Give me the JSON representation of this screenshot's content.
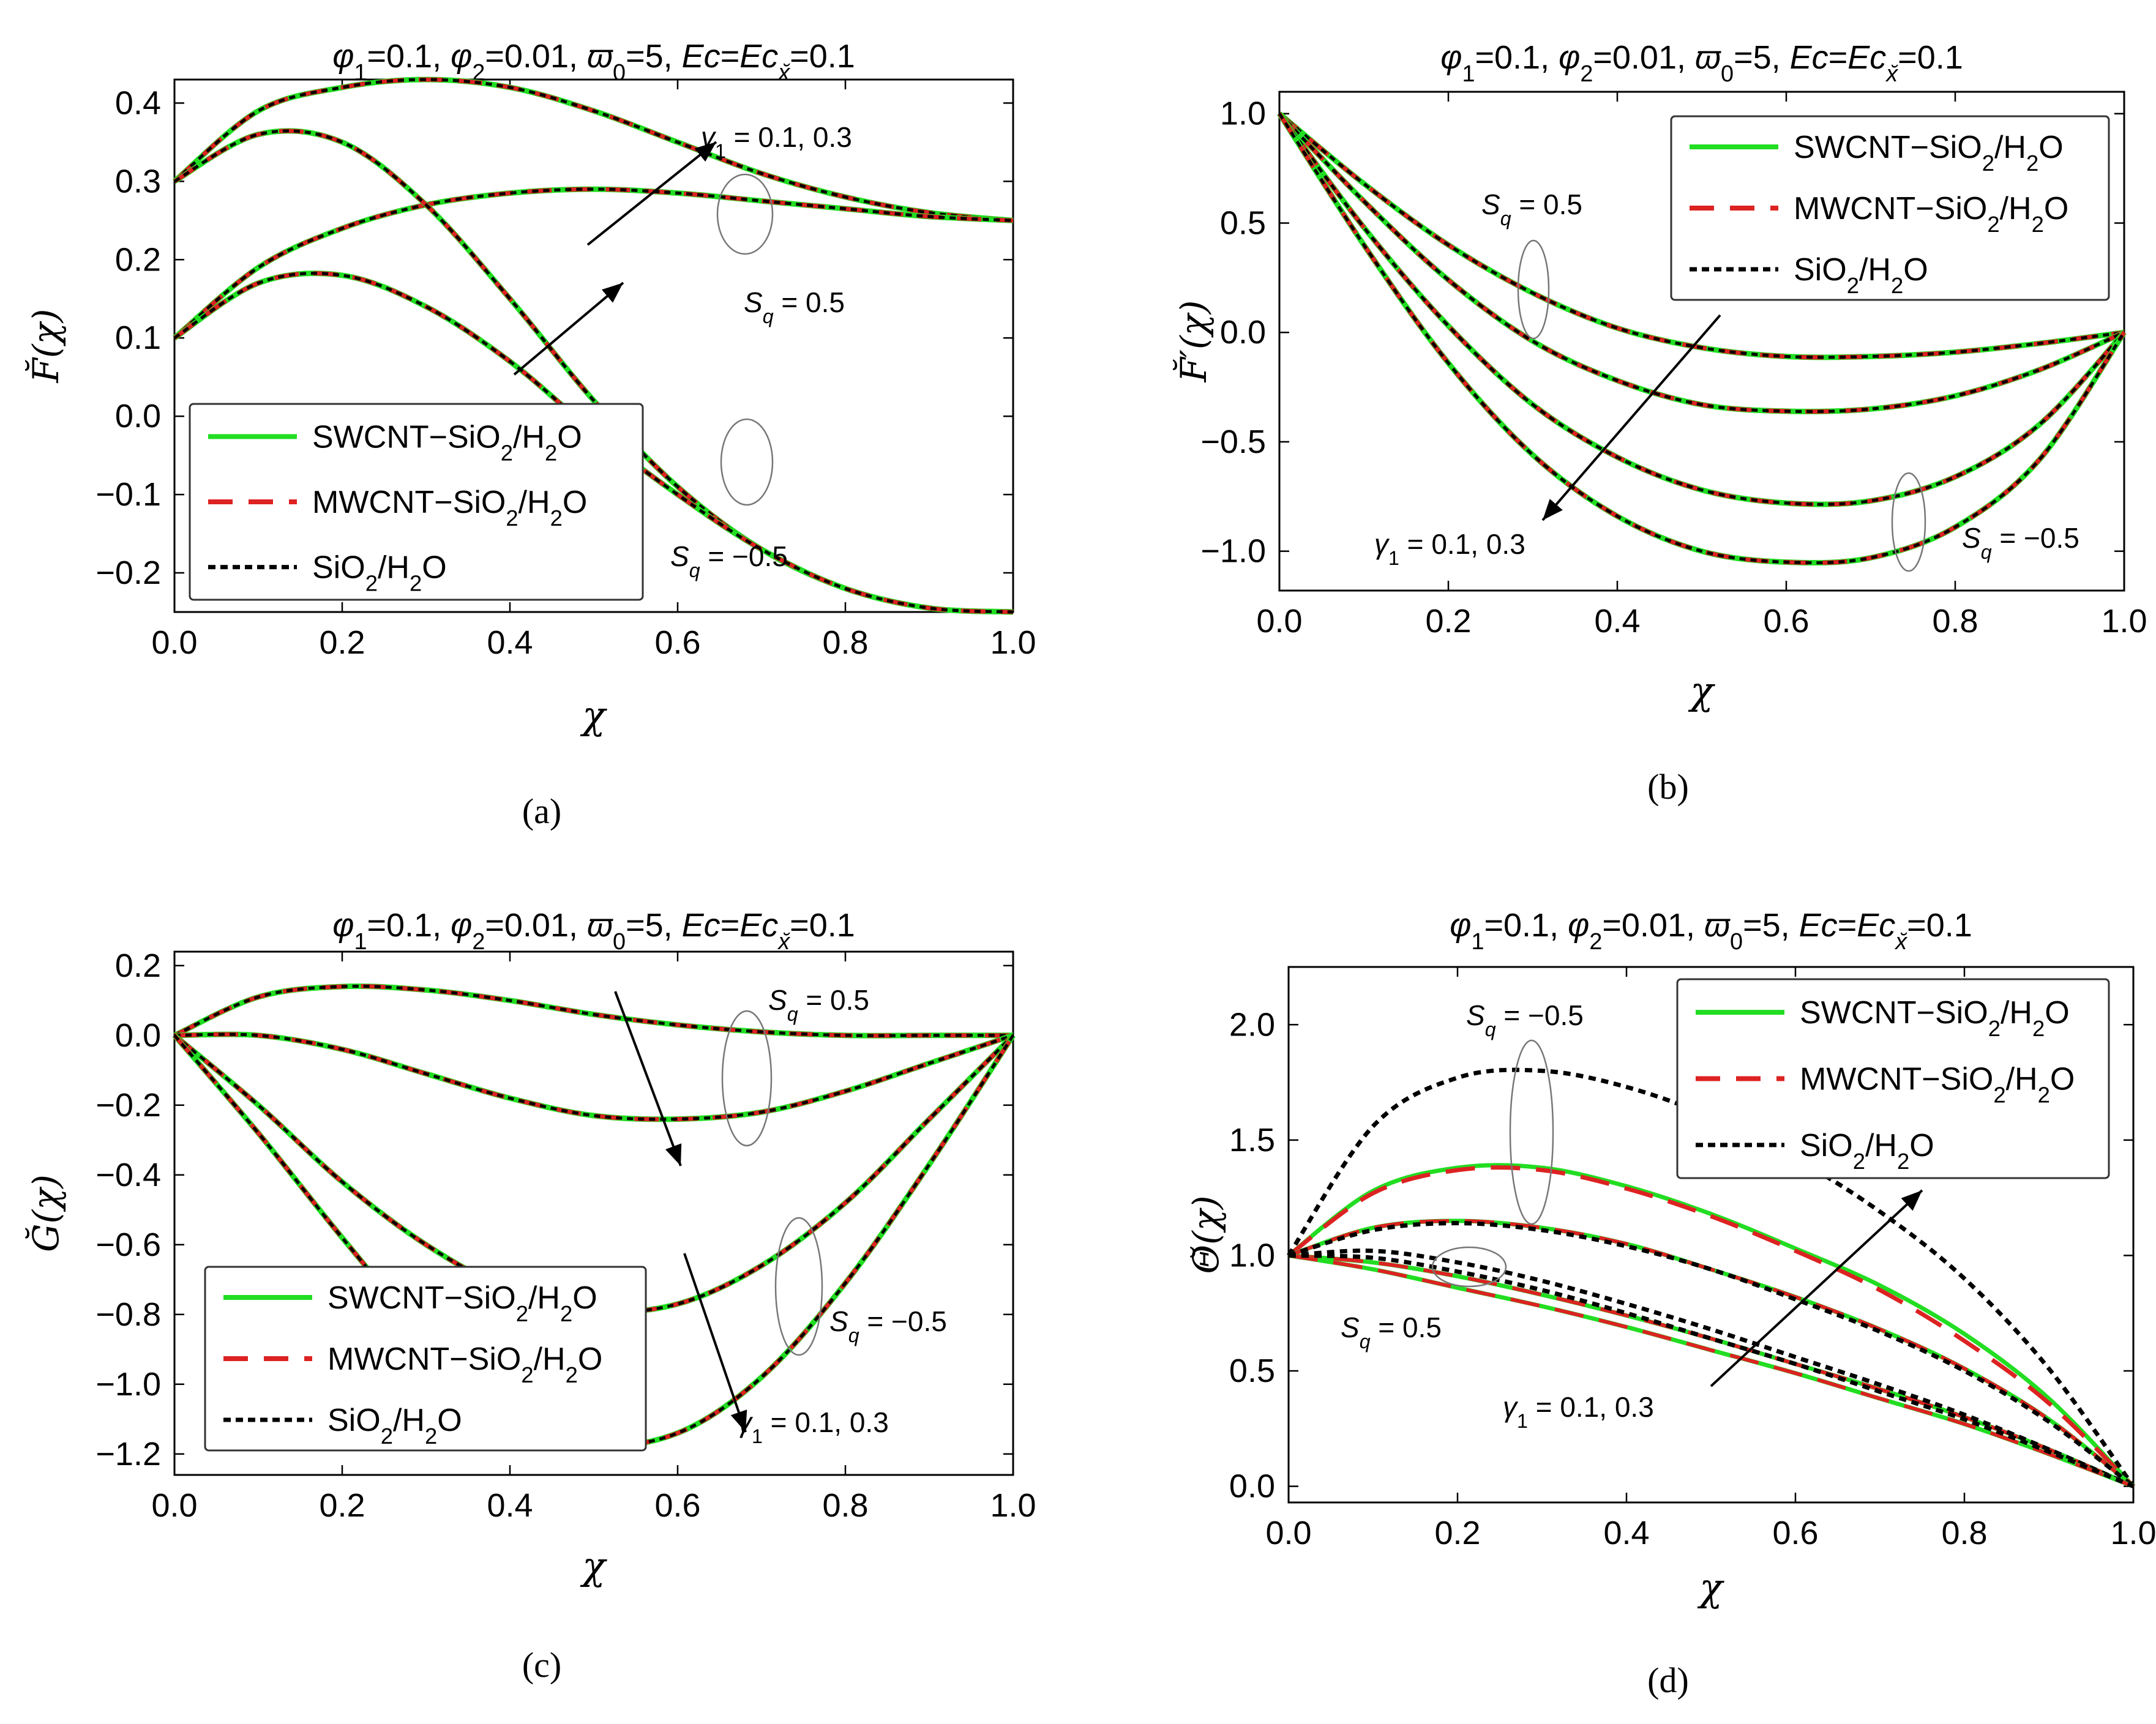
{
  "colors": {
    "swcnt": "#22dd22",
    "mwcnt": "#dd2222",
    "sio2": "#000000",
    "frame": "#000000",
    "ellipse": "#777777"
  },
  "chart_data": [
    {
      "id": "a",
      "type": "line",
      "panel_label": "(a)",
      "title": "φ₁=0.1, φ₂=0.01, ϖ₀=5,  Ec=Ec_x̆=0.1",
      "xlabel": "χ",
      "ylabel": "F̆(χ)",
      "xlim": [
        0,
        1
      ],
      "ylim": [
        -0.25,
        0.43
      ],
      "xticks": [
        "0.0",
        "0.2",
        "0.4",
        "0.6",
        "0.8",
        "1.0"
      ],
      "xtick_values": [
        0,
        0.2,
        0.4,
        0.6,
        0.8,
        1.0
      ],
      "yticks": [
        "-0.2",
        "-0.1",
        "0.0",
        "0.1",
        "0.2",
        "0.3",
        "0.4"
      ],
      "ytick_values": [
        -0.2,
        -0.1,
        0.0,
        0.1,
        0.2,
        0.3,
        0.4
      ],
      "legend": [
        "SWCNT-SiO2/H2O",
        "MWCNT-SiO2/H2O",
        "SiO2/H2O"
      ],
      "legend_position": "bottom-left",
      "x": [
        0,
        0.1,
        0.2,
        0.3,
        0.4,
        0.5,
        0.6,
        0.7,
        0.8,
        0.9,
        1.0
      ],
      "series": [
        {
          "name": "Sq = 0.5, γ1 = 0.3",
          "values": [
            0.3,
            0.39,
            0.42,
            0.43,
            0.42,
            0.39,
            0.35,
            0.31,
            0.28,
            0.26,
            0.25
          ]
        },
        {
          "name": "Sq = 0.5, γ1 = 0.1",
          "values": [
            0.1,
            0.19,
            0.24,
            0.27,
            0.285,
            0.29,
            0.285,
            0.275,
            0.265,
            0.255,
            0.25
          ]
        },
        {
          "name": "Sq = -0.5, γ1 = 0.3",
          "values": [
            0.3,
            0.36,
            0.35,
            0.27,
            0.15,
            0.02,
            -0.09,
            -0.17,
            -0.22,
            -0.245,
            -0.25
          ]
        },
        {
          "name": "Sq = -0.5, γ1 = 0.1",
          "values": [
            0.1,
            0.17,
            0.18,
            0.14,
            0.07,
            -0.02,
            -0.1,
            -0.17,
            -0.22,
            -0.245,
            -0.25
          ]
        }
      ],
      "annotations": [
        "γ1 = 0.1,  0.3",
        "Sq = 0.5",
        "Sq = −0.5"
      ]
    },
    {
      "id": "b",
      "type": "line",
      "panel_label": "(b)",
      "title": "φ₁=0.1, φ₂=0.01, ϖ₀=5,  Ec=Ec_x̆=0.1",
      "xlabel": "χ",
      "ylabel": "F̆′(χ)",
      "xlim": [
        0,
        1
      ],
      "ylim": [
        -1.18,
        1.1
      ],
      "xticks": [
        "0.0",
        "0.2",
        "0.4",
        "0.6",
        "0.8",
        "1.0"
      ],
      "xtick_values": [
        0,
        0.2,
        0.4,
        0.6,
        0.8,
        1.0
      ],
      "yticks": [
        "-1.0",
        "-0.5",
        "0.0",
        "0.5",
        "1.0"
      ],
      "ytick_values": [
        -1.0,
        -0.5,
        0.0,
        0.5,
        1.0
      ],
      "legend": [
        "SWCNT-SiO2/H2O",
        "MWCNT-SiO2/H2O",
        "SiO2/H2O"
      ],
      "legend_position": "top-right",
      "x": [
        0,
        0.1,
        0.2,
        0.3,
        0.4,
        0.5,
        0.6,
        0.7,
        0.8,
        0.9,
        1.0
      ],
      "series": [
        {
          "name": "Sq = 0.5, γ1 = 0.1",
          "values": [
            1.0,
            0.68,
            0.4,
            0.18,
            0.02,
            -0.07,
            -0.11,
            -0.11,
            -0.09,
            -0.05,
            0.0
          ]
        },
        {
          "name": "Sq = 0.5, γ1 = 0.3",
          "values": [
            1.0,
            0.6,
            0.24,
            -0.04,
            -0.22,
            -0.33,
            -0.36,
            -0.35,
            -0.29,
            -0.17,
            0.0
          ]
        },
        {
          "name": "Sq = -0.5, γ1 = 0.1",
          "values": [
            1.0,
            0.48,
            0.03,
            -0.33,
            -0.57,
            -0.72,
            -0.78,
            -0.77,
            -0.66,
            -0.42,
            0.0
          ]
        },
        {
          "name": "Sq = -0.5, γ1 = 0.3",
          "values": [
            1.0,
            0.4,
            -0.14,
            -0.56,
            -0.84,
            -1.0,
            -1.05,
            -1.03,
            -0.89,
            -0.58,
            0.0
          ]
        }
      ],
      "annotations": [
        "Sq = 0.5",
        "γ1 = 0.1,  0.3",
        "Sq = −0.5"
      ]
    },
    {
      "id": "c",
      "type": "line",
      "panel_label": "(c)",
      "title": "φ₁=0.1, φ₂=0.01, ϖ₀=5,  Ec=Ec_x̆=0.1",
      "xlabel": "χ",
      "ylabel": "Ğ(χ)",
      "xlim": [
        0,
        1
      ],
      "ylim": [
        -1.26,
        0.24
      ],
      "xticks": [
        "0.0",
        "0.2",
        "0.4",
        "0.6",
        "0.8",
        "1.0"
      ],
      "xtick_values": [
        0,
        0.2,
        0.4,
        0.6,
        0.8,
        1.0
      ],
      "yticks": [
        "-1.2",
        "-1.0",
        "-0.8",
        "-0.6",
        "-0.4",
        "-0.2",
        "0.0",
        "0.2"
      ],
      "ytick_values": [
        -1.2,
        -1.0,
        -0.8,
        -0.6,
        -0.4,
        -0.2,
        0.0,
        0.2
      ],
      "legend": [
        "SWCNT-SiO2/H2O",
        "MWCNT-SiO2/H2O",
        "SiO2/H2O"
      ],
      "legend_position": "bottom-left",
      "x": [
        0,
        0.1,
        0.2,
        0.3,
        0.4,
        0.5,
        0.6,
        0.7,
        0.8,
        0.9,
        1.0
      ],
      "series": [
        {
          "name": "Sq = 0.5, γ1 = 0.1",
          "values": [
            0.0,
            0.11,
            0.14,
            0.13,
            0.1,
            0.06,
            0.03,
            0.01,
            0.0,
            0.0,
            0.0
          ]
        },
        {
          "name": "Sq = 0.5, γ1 = 0.3",
          "values": [
            0.0,
            0.0,
            -0.04,
            -0.11,
            -0.18,
            -0.23,
            -0.24,
            -0.22,
            -0.16,
            -0.08,
            0.0
          ]
        },
        {
          "name": "Sq = -0.5, γ1 = 0.1",
          "values": [
            0.0,
            -0.2,
            -0.42,
            -0.6,
            -0.73,
            -0.79,
            -0.77,
            -0.66,
            -0.48,
            -0.24,
            0.0
          ]
        },
        {
          "name": "Sq = -0.5, γ1 = 0.3",
          "values": [
            0.0,
            -0.28,
            -0.58,
            -0.86,
            -1.07,
            -1.17,
            -1.14,
            -0.98,
            -0.71,
            -0.37,
            0.0
          ]
        }
      ],
      "annotations": [
        "Sq = 0.5",
        "Sq = −0.5",
        "γ1 = 0.1, 0.3"
      ]
    },
    {
      "id": "d",
      "type": "line",
      "panel_label": "(d)",
      "title": "φ₁=0.1, φ₂=0.01, ϖ₀=5,  Ec=Ec_x̆=0.1",
      "xlabel": "χ",
      "ylabel": "Θ̆(χ)",
      "xlim": [
        0,
        1
      ],
      "ylim": [
        -0.07,
        2.25
      ],
      "xticks": [
        "0.0",
        "0.2",
        "0.4",
        "0.6",
        "0.8",
        "1.0"
      ],
      "xtick_values": [
        0,
        0.2,
        0.4,
        0.6,
        0.8,
        1.0
      ],
      "yticks": [
        "0.0",
        "0.5",
        "1.0",
        "1.5",
        "2.0"
      ],
      "ytick_values": [
        0.0,
        0.5,
        1.0,
        1.5,
        2.0
      ],
      "legend": [
        "SWCNT-SiO2/H2O",
        "MWCNT-SiO2/H2O",
        "SiO2/H2O"
      ],
      "legend_position": "top-right",
      "x": [
        0,
        0.1,
        0.2,
        0.3,
        0.4,
        0.5,
        0.6,
        0.7,
        0.8,
        0.9,
        1.0
      ],
      "series": [
        {
          "name": "Sq = -0.5, γ1 = 0.3 (SWCNT-SiO2/H2O)",
          "values": [
            1.0,
            1.28,
            1.38,
            1.38,
            1.3,
            1.18,
            1.03,
            0.87,
            0.66,
            0.38,
            0.0
          ]
        },
        {
          "name": "Sq = -0.5, γ1 = 0.3 (MWCNT-SiO2/H2O)",
          "values": [
            1.0,
            1.27,
            1.37,
            1.37,
            1.29,
            1.17,
            1.02,
            0.85,
            0.63,
            0.36,
            0.0
          ]
        },
        {
          "name": "Sq = -0.5, γ1 = 0.3 (SiO2/H2O)",
          "values": [
            1.0,
            1.56,
            1.77,
            1.8,
            1.73,
            1.6,
            1.42,
            1.19,
            0.9,
            0.51,
            0.0
          ]
        },
        {
          "name": "Sq = -0.5, γ1 = 0.1 (SWCNT-SiO2/H2O)",
          "values": [
            1.0,
            1.12,
            1.15,
            1.12,
            1.05,
            0.94,
            0.82,
            0.68,
            0.51,
            0.29,
            0.0
          ]
        },
        {
          "name": "Sq = -0.5, γ1 = 0.1 (SiO2/H2O)",
          "values": [
            1.0,
            1.11,
            1.14,
            1.11,
            1.04,
            0.94,
            0.81,
            0.67,
            0.5,
            0.28,
            0.0
          ]
        },
        {
          "name": "Sq = 0.5, γ1 = 0.3 (SWCNT-SiO2/H2O)",
          "values": [
            1.0,
            0.97,
            0.91,
            0.83,
            0.74,
            0.64,
            0.53,
            0.42,
            0.3,
            0.16,
            0.0
          ]
        },
        {
          "name": "Sq = 0.5, γ1 = 0.3 (SiO2/H2O)",
          "values": [
            1.0,
            1.02,
            0.97,
            0.89,
            0.79,
            0.68,
            0.56,
            0.44,
            0.31,
            0.16,
            0.0
          ]
        },
        {
          "name": "Sq = 0.5, γ1 = 0.1 (SWCNT-SiO2/H2O)",
          "values": [
            1.0,
            0.94,
            0.86,
            0.78,
            0.69,
            0.59,
            0.49,
            0.38,
            0.27,
            0.14,
            0.0
          ]
        },
        {
          "name": "Sq = 0.5, γ1 = 0.1 (SiO2/H2O)",
          "values": [
            1.0,
            0.99,
            0.93,
            0.85,
            0.75,
            0.64,
            0.53,
            0.41,
            0.29,
            0.15,
            0.0
          ]
        }
      ],
      "annotations": [
        "Sq = −0.5",
        "Sq = 0.5",
        "γ1 = 0.1, 0.3"
      ]
    }
  ]
}
